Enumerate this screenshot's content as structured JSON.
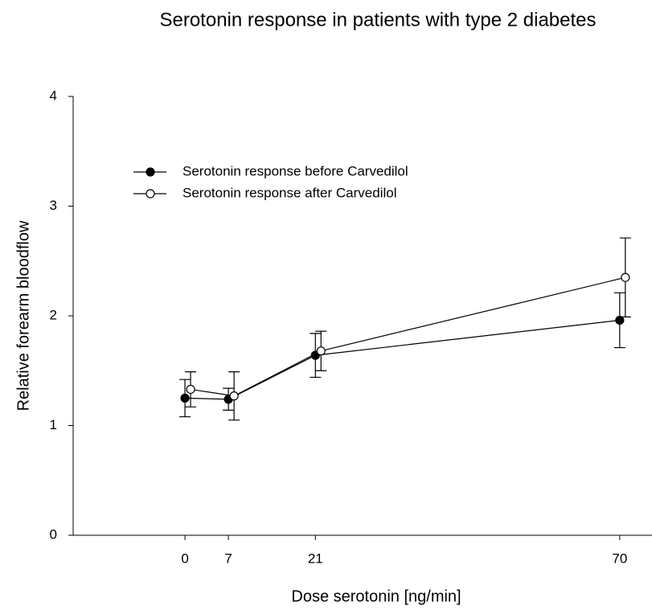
{
  "chart_data": {
    "type": "line",
    "title": "Serotonin response in patients with type 2 diabetes",
    "x_label": "Dose serotonin [ng/min]",
    "y_label": "Relative forearm bloodflow",
    "x": [
      0,
      7,
      21,
      70
    ],
    "series": [
      {
        "name": "Serotonin response before Carvedilol",
        "color": "#000000",
        "marker": "filled",
        "values": [
          1.25,
          1.24,
          1.64,
          1.96
        ],
        "errors": [
          0.17,
          0.1,
          0.2,
          0.25
        ]
      },
      {
        "name": "Serotonin response after Carvedilol",
        "color": "#000000",
        "marker": "open",
        "values": [
          1.33,
          1.27,
          1.68,
          2.35
        ],
        "errors": [
          0.16,
          0.22,
          0.18,
          0.36
        ]
      }
    ],
    "xlim": [
      -18,
      75.2
    ],
    "ylim": [
      0,
      4
    ],
    "xticks": [
      0,
      7,
      21,
      70
    ],
    "yticks": [
      0,
      1,
      2,
      3,
      4
    ],
    "grid": false,
    "legend": "upper left"
  }
}
